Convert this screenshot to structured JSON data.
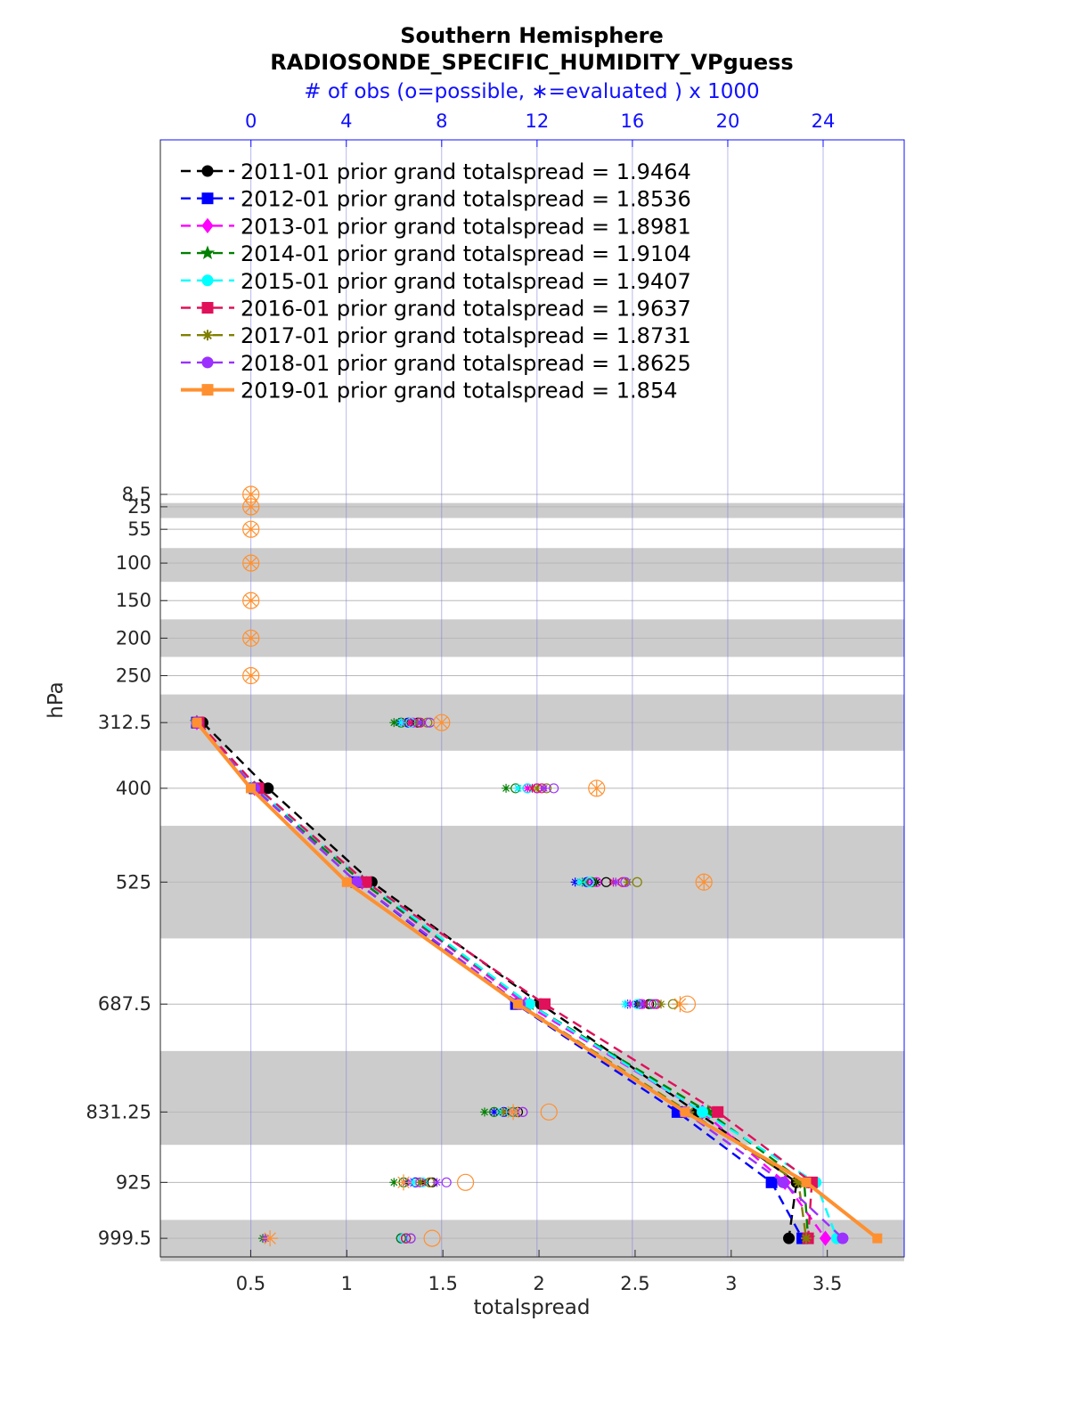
{
  "chart_data": {
    "type": "line",
    "title": "Southern Hemisphere",
    "subtitle": "RADIOSONDE_SPECIFIC_HUMIDITY_VPguess",
    "top_axis_label": "# of obs (o=possible, ∗=evaluated ) x 1000",
    "xlabel": "totalspread",
    "ylabel": "hPa",
    "xlim": [
      0.03,
      3.9
    ],
    "xticks": [
      0.5,
      1,
      1.5,
      2,
      2.5,
      3,
      3.5
    ],
    "top_xlim": [
      -3.8,
      27.4
    ],
    "top_xticks": [
      0,
      4,
      8,
      12,
      16,
      20,
      24
    ],
    "levels": [
      8.5,
      25,
      55,
      100,
      150,
      200,
      250,
      312.5,
      400,
      525,
      687.5,
      831.25,
      925,
      999.5
    ],
    "level_labels": [
      "8.5",
      "25",
      "55",
      "100",
      "150",
      "200",
      "250",
      "312.5",
      "400",
      "525",
      "687.5",
      "831.25",
      "925",
      "999.5"
    ],
    "shaded_bands": [
      [
        20,
        40
      ],
      [
        80,
        125
      ],
      [
        175,
        225
      ],
      [
        275,
        350
      ],
      [
        450,
        600
      ],
      [
        750,
        875
      ],
      [
        975,
        1030
      ]
    ],
    "y_direction": "reversed",
    "grid": true,
    "legend_position": "top-left",
    "plotted_levels": [
      312.5,
      400,
      525,
      687.5,
      831.25,
      925,
      999.5
    ],
    "series": [
      {
        "name": "2011-01 prior grand totalspread = 1.9464",
        "color": "#000000",
        "marker": "circle",
        "dash": "dashed",
        "values": [
          0.25,
          0.59,
          1.13,
          2.01,
          2.82,
          3.34,
          3.3
        ],
        "possible": [
          null,
          null,
          null,
          null,
          null,
          null,
          null,
          7.0,
          12.0,
          14.9,
          16.7,
          11.2,
          7.6,
          6.5
        ],
        "evaluated": [
          null,
          null,
          null,
          null,
          null,
          null,
          null,
          6.5,
          11.6,
          14.5,
          16.2,
          10.7,
          7.2,
          0.6
        ]
      },
      {
        "name": "2012-01 prior grand totalspread = 1.8536",
        "color": "#0000ff",
        "marker": "square",
        "dash": "dashed",
        "values": [
          0.22,
          0.52,
          1.05,
          1.88,
          2.72,
          3.21,
          3.37
        ],
        "possible": [
          null,
          null,
          null,
          null,
          null,
          null,
          null,
          6.6,
          11.6,
          14.1,
          16.3,
          10.6,
          6.9,
          6.3
        ],
        "evaluated": [
          null,
          null,
          null,
          null,
          null,
          null,
          null,
          6.2,
          11.2,
          13.6,
          15.8,
          10.2,
          6.5,
          0.6
        ]
      },
      {
        "name": "2013-01 prior grand totalspread = 1.8981",
        "color": "#ff00ff",
        "marker": "diamond",
        "dash": "dashed",
        "values": [
          0.22,
          0.52,
          1.08,
          1.93,
          2.85,
          3.28,
          3.49
        ],
        "possible": [
          null,
          null,
          null,
          null,
          null,
          null,
          null,
          6.8,
          12.0,
          14.5,
          16.4,
          11.0,
          7.1,
          6.4
        ],
        "evaluated": [
          null,
          null,
          null,
          null,
          null,
          null,
          null,
          6.4,
          11.6,
          14.1,
          15.9,
          10.6,
          6.7,
          0.6
        ]
      },
      {
        "name": "2014-01 prior grand totalspread = 1.9104",
        "color": "#008000",
        "marker": "star",
        "dash": "dashed",
        "values": [
          0.22,
          0.52,
          1.08,
          1.95,
          2.88,
          3.38,
          3.4
        ],
        "possible": [
          null,
          null,
          null,
          null,
          null,
          null,
          null,
          6.3,
          11.1,
          14.3,
          16.8,
          10.2,
          6.4,
          6.3
        ],
        "evaluated": [
          null,
          null,
          null,
          null,
          null,
          null,
          null,
          6.0,
          10.7,
          13.9,
          16.3,
          9.8,
          6.0,
          0.5
        ]
      },
      {
        "name": "2015-01 prior grand totalspread = 1.9407",
        "color": "#00ffff",
        "marker": "hexagon",
        "dash": "dashed",
        "values": [
          0.22,
          0.53,
          1.1,
          1.95,
          2.85,
          3.44,
          3.55
        ],
        "possible": [
          null,
          null,
          null,
          null,
          null,
          null,
          null,
          6.7,
          11.6,
          14.2,
          16.2,
          10.9,
          7.2,
          6.4
        ],
        "evaluated": [
          null,
          null,
          null,
          null,
          null,
          null,
          null,
          6.3,
          11.2,
          13.8,
          15.7,
          10.5,
          6.8,
          0.6
        ]
      },
      {
        "name": "2016-01 prior grand totalspread = 1.9637",
        "color": "#e0105a",
        "marker": "square",
        "dash": "dashed",
        "values": [
          0.23,
          0.54,
          1.1,
          2.03,
          2.93,
          3.42,
          3.4
        ],
        "possible": [
          null,
          null,
          null,
          null,
          null,
          null,
          null,
          7.1,
          12.2,
          15.6,
          17.0,
          11.4,
          7.5,
          6.5
        ],
        "evaluated": [
          null,
          null,
          null,
          null,
          null,
          null,
          null,
          6.7,
          11.8,
          15.2,
          16.5,
          11.0,
          7.1,
          0.6
        ]
      },
      {
        "name": "2017-01 prior grand totalspread = 1.8731",
        "color": "#808000",
        "marker": "asterisk",
        "dash": "dashed",
        "values": [
          0.22,
          0.52,
          1.05,
          1.9,
          2.78,
          3.35,
          3.39
        ],
        "possible": [
          null,
          null,
          null,
          null,
          null,
          null,
          null,
          7.4,
          12.4,
          16.2,
          17.7,
          11.0,
          7.5,
          6.7
        ],
        "evaluated": [
          null,
          null,
          null,
          null,
          null,
          null,
          null,
          7.0,
          12.0,
          15.8,
          17.2,
          10.6,
          7.1,
          0.6
        ]
      },
      {
        "name": "2018-01 prior grand totalspread = 1.8625",
        "color": "#9b30ff",
        "marker": "circle",
        "dash": "dashed",
        "values": [
          0.22,
          0.52,
          1.05,
          1.9,
          2.76,
          3.27,
          3.58
        ],
        "possible": [
          null,
          null,
          null,
          null,
          null,
          null,
          null,
          7.5,
          12.7,
          15.7,
          16.9,
          11.4,
          8.2,
          6.7
        ],
        "evaluated": [
          null,
          null,
          null,
          null,
          null,
          null,
          null,
          7.1,
          12.3,
          15.3,
          16.4,
          11.0,
          7.8,
          0.6
        ]
      },
      {
        "name": "2019-01 prior grand totalspread = 1.854",
        "color": "#ff9030",
        "marker": "square",
        "dash": "solid",
        "values": [
          0.22,
          0.5,
          1.0,
          1.89,
          2.76,
          3.39,
          3.76
        ],
        "possible": [
          0,
          0,
          0,
          0,
          0,
          0,
          0,
          8.0,
          14.5,
          19.0,
          18.3,
          12.5,
          9.0,
          7.6
        ],
        "evaluated": [
          0,
          0,
          0,
          0,
          0,
          0,
          0,
          8.0,
          14.5,
          19.0,
          18.0,
          11.0,
          6.4,
          0.8
        ]
      }
    ]
  }
}
